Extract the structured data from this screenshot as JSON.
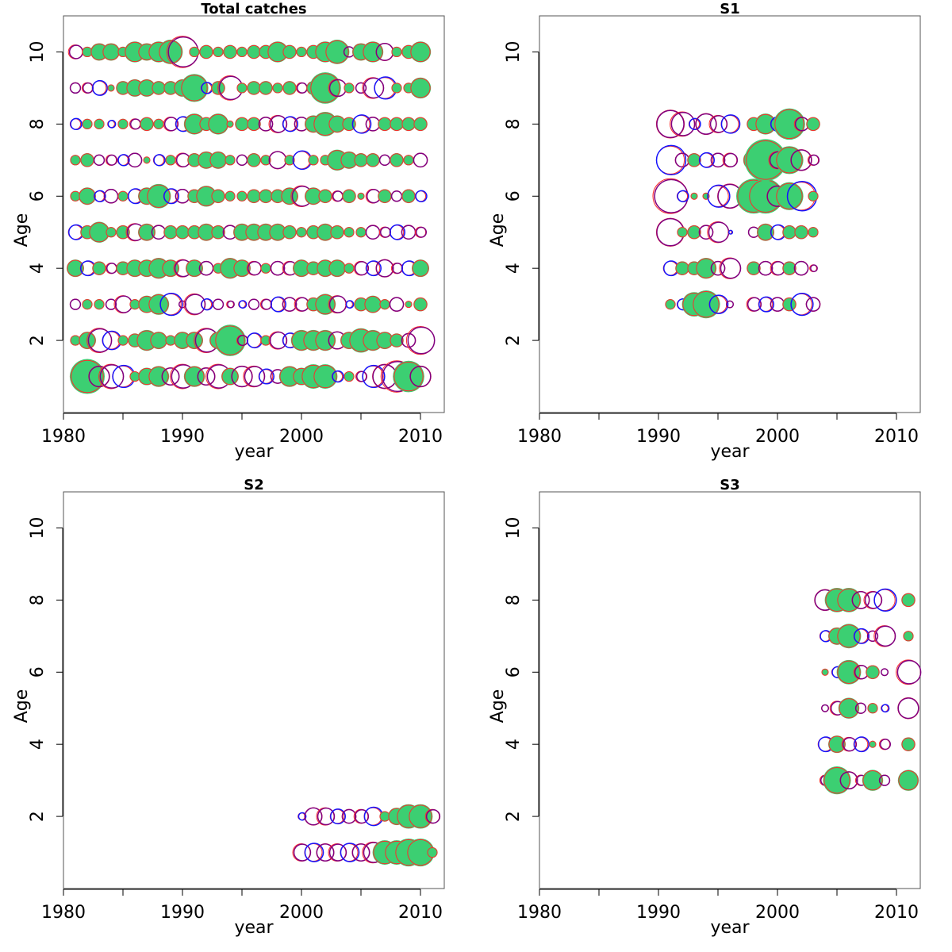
{
  "colors": {
    "filled": "#3ccf72",
    "outline_red": "#ff2a2a",
    "outline_blue": "#1414ff",
    "outline_purple": "#800080"
  },
  "chart_data": [
    {
      "type": "scatter",
      "title": "Total catches",
      "xlabel": "year",
      "ylabel": "Age",
      "xlim": [
        1980,
        2012
      ],
      "ylim": [
        0,
        11
      ],
      "xticks": [
        "1980",
        "1990",
        "2000",
        "2010"
      ],
      "yticks": [
        "2",
        "4",
        "6",
        "8",
        "10"
      ],
      "grid": false,
      "x": [
        1981,
        1982,
        1983,
        1984,
        1985,
        1986,
        1987,
        1988,
        1989,
        1990,
        1991,
        1992,
        1993,
        1994,
        1995,
        1996,
        1997,
        1998,
        1999,
        2000,
        2001,
        2002,
        2003,
        2004,
        2005,
        2006,
        2007,
        2008,
        2009,
        2010
      ],
      "ages": [
        1,
        2,
        3,
        4,
        5,
        6,
        7,
        8,
        9,
        10
      ],
      "sizes": [
        [
          0.3,
          1.0,
          0.6,
          0.7,
          0.6,
          0.3,
          0.5,
          0.6,
          0.5,
          0.7,
          0.6,
          0.5,
          0.7,
          0.5,
          0.6,
          0.6,
          0.4,
          0.4,
          0.6,
          0.5,
          0.7,
          0.7,
          0.3,
          0.3,
          0.3,
          0.6,
          0.7,
          0.9,
          0.9,
          0.6
        ],
        [
          0.3,
          0.5,
          0.7,
          0.5,
          0.3,
          0.4,
          0.6,
          0.5,
          0.3,
          0.5,
          0.5,
          0.7,
          0.5,
          0.9,
          0.3,
          0.4,
          0.3,
          0.5,
          0.4,
          0.6,
          0.6,
          0.6,
          0.5,
          0.5,
          0.7,
          0.6,
          0.5,
          0.4,
          0.4,
          0.8
        ],
        [
          0.3,
          0.3,
          0.3,
          0.3,
          0.5,
          0.3,
          0.5,
          0.6,
          0.6,
          0.2,
          0.6,
          0.3,
          0.3,
          0.2,
          0.2,
          0.3,
          0.3,
          0.4,
          0.4,
          0.4,
          0.4,
          0.6,
          0.5,
          0.2,
          0.4,
          0.5,
          0.3,
          0.4,
          0.2,
          0.4
        ],
        [
          0.5,
          0.4,
          0.4,
          0.3,
          0.4,
          0.5,
          0.5,
          0.6,
          0.5,
          0.5,
          0.5,
          0.4,
          0.3,
          0.6,
          0.5,
          0.4,
          0.3,
          0.4,
          0.4,
          0.5,
          0.4,
          0.5,
          0.5,
          0.3,
          0.4,
          0.4,
          0.5,
          0.3,
          0.4,
          0.5
        ],
        [
          0.4,
          0.4,
          0.6,
          0.3,
          0.4,
          0.5,
          0.5,
          0.4,
          0.4,
          0.4,
          0.4,
          0.5,
          0.4,
          0.4,
          0.5,
          0.5,
          0.5,
          0.5,
          0.4,
          0.3,
          0.4,
          0.5,
          0.4,
          0.3,
          0.3,
          0.4,
          0.3,
          0.4,
          0.4,
          0.3
        ],
        [
          0.3,
          0.5,
          0.3,
          0.4,
          0.3,
          0.4,
          0.5,
          0.7,
          0.4,
          0.4,
          0.4,
          0.6,
          0.4,
          0.3,
          0.3,
          0.4,
          0.4,
          0.4,
          0.5,
          0.6,
          0.5,
          0.4,
          0.3,
          0.4,
          0.2,
          0.4,
          0.4,
          0.3,
          0.4,
          0.3
        ],
        [
          0.3,
          0.4,
          0.3,
          0.3,
          0.3,
          0.4,
          0.2,
          0.3,
          0.3,
          0.4,
          0.4,
          0.5,
          0.5,
          0.3,
          0.3,
          0.4,
          0.3,
          0.5,
          0.3,
          0.5,
          0.3,
          0.3,
          0.6,
          0.5,
          0.4,
          0.4,
          0.3,
          0.4,
          0.3,
          0.4
        ],
        [
          0.3,
          0.3,
          0.3,
          0.2,
          0.3,
          0.3,
          0.4,
          0.3,
          0.4,
          0.4,
          0.6,
          0.4,
          0.6,
          0.2,
          0.4,
          0.4,
          0.4,
          0.5,
          0.4,
          0.4,
          0.5,
          0.7,
          0.5,
          0.4,
          0.5,
          0.4,
          0.4,
          0.4,
          0.4,
          0.4
        ],
        [
          0.3,
          0.3,
          0.4,
          0.2,
          0.4,
          0.5,
          0.5,
          0.4,
          0.4,
          0.5,
          0.8,
          0.3,
          0.4,
          0.7,
          0.3,
          0.4,
          0.4,
          0.3,
          0.4,
          0.3,
          0.4,
          0.9,
          0.5,
          0.3,
          0.3,
          0.6,
          0.6,
          0.3,
          0.3,
          0.6
        ],
        [
          0.4,
          0.3,
          0.5,
          0.5,
          0.3,
          0.6,
          0.5,
          0.6,
          0.7,
          0.9,
          0.3,
          0.4,
          0.3,
          0.4,
          0.3,
          0.4,
          0.4,
          0.6,
          0.4,
          0.3,
          0.4,
          0.6,
          0.7,
          0.3,
          0.5,
          0.6,
          0.5,
          0.3,
          0.4,
          0.6
        ]
      ],
      "filled": [
        [
          0,
          1,
          0,
          0,
          0,
          1,
          1,
          1,
          0,
          0,
          1,
          0,
          0,
          1,
          0,
          0,
          0,
          0,
          1,
          1,
          1,
          1,
          0,
          1,
          0,
          0,
          0,
          0,
          1,
          0
        ],
        [
          1,
          1,
          0,
          0,
          1,
          1,
          1,
          1,
          1,
          1,
          1,
          0,
          1,
          1,
          0,
          0,
          1,
          0,
          0,
          1,
          1,
          1,
          0,
          1,
          1,
          1,
          1,
          1,
          0,
          0
        ],
        [
          0,
          1,
          1,
          0,
          0,
          1,
          1,
          1,
          0,
          0,
          0,
          0,
          0,
          0,
          0,
          0,
          0,
          0,
          0,
          0,
          1,
          1,
          0,
          0,
          1,
          1,
          1,
          0,
          1,
          1
        ],
        [
          1,
          0,
          1,
          0,
          1,
          1,
          1,
          1,
          1,
          0,
          1,
          0,
          1,
          1,
          1,
          0,
          1,
          0,
          0,
          1,
          1,
          1,
          1,
          1,
          0,
          0,
          0,
          0,
          0,
          1
        ],
        [
          0,
          1,
          1,
          1,
          1,
          0,
          1,
          0,
          1,
          1,
          1,
          1,
          1,
          0,
          1,
          1,
          1,
          1,
          1,
          1,
          1,
          1,
          1,
          1,
          1,
          0,
          0,
          0,
          0,
          0
        ],
        [
          1,
          1,
          0,
          0,
          1,
          0,
          1,
          1,
          0,
          0,
          1,
          1,
          1,
          1,
          1,
          1,
          1,
          1,
          1,
          0,
          1,
          1,
          0,
          1,
          1,
          0,
          1,
          0,
          1,
          0
        ],
        [
          1,
          1,
          0,
          0,
          0,
          0,
          1,
          0,
          1,
          0,
          1,
          1,
          1,
          1,
          0,
          1,
          1,
          0,
          1,
          0,
          1,
          1,
          1,
          1,
          1,
          1,
          0,
          1,
          1,
          0
        ],
        [
          0,
          1,
          1,
          0,
          1,
          0,
          1,
          1,
          0,
          0,
          1,
          1,
          1,
          1,
          1,
          1,
          0,
          0,
          0,
          0,
          1,
          1,
          1,
          1,
          0,
          0,
          1,
          1,
          1,
          1
        ],
        [
          0,
          0,
          0,
          1,
          1,
          1,
          1,
          1,
          1,
          1,
          1,
          0,
          1,
          0,
          1,
          1,
          1,
          1,
          1,
          0,
          1,
          1,
          0,
          1,
          0,
          0,
          0,
          1,
          1,
          1
        ],
        [
          0,
          1,
          1,
          1,
          1,
          1,
          1,
          1,
          1,
          0,
          1,
          1,
          1,
          1,
          1,
          1,
          1,
          1,
          1,
          1,
          1,
          1,
          1,
          0,
          1,
          1,
          0,
          1,
          1,
          1
        ]
      ]
    },
    {
      "type": "scatter",
      "title": "S1",
      "xlabel": "year",
      "ylabel": "Age",
      "xlim": [
        1980,
        2012
      ],
      "ylim": [
        0,
        11
      ],
      "xticks": [
        "1980",
        "1990",
        "2000",
        "2010"
      ],
      "yticks": [
        "2",
        "4",
        "6",
        "8",
        "10"
      ],
      "grid": false,
      "x": [
        1991,
        1992,
        1993,
        1994,
        1995,
        1996,
        1998,
        1999,
        2000,
        2001,
        2002,
        2003
      ],
      "ages": [
        3,
        4,
        5,
        6,
        7,
        8
      ],
      "sizes": [
        [
          0.3,
          0.3,
          0.7,
          0.8,
          0.5,
          0.2,
          0.4,
          0.4,
          0.4,
          0.4,
          0.6,
          0.4
        ],
        [
          0.4,
          0.4,
          0.4,
          0.6,
          0.4,
          0.6,
          0.4,
          0.4,
          0.4,
          0.4,
          0.4,
          0.2
        ],
        [
          0.8,
          0.3,
          0.4,
          0.4,
          0.6,
          0.1,
          0.3,
          0.5,
          0.4,
          0.4,
          0.4,
          0.3
        ],
        [
          1.0,
          0.3,
          0.2,
          0.2,
          0.6,
          0.7,
          1.0,
          1.0,
          0.6,
          0.8,
          0.8,
          0.3
        ],
        [
          0.8,
          0.4,
          0.4,
          0.4,
          0.4,
          0.4,
          0.6,
          1.2,
          0.5,
          0.8,
          0.6,
          0.3
        ],
        [
          0.8,
          0.7,
          0.3,
          0.6,
          0.5,
          0.5,
          0.4,
          0.6,
          0.4,
          0.9,
          0.4,
          0.4
        ]
      ],
      "filled": [
        [
          1,
          0,
          1,
          1,
          0,
          0,
          0,
          0,
          0,
          1,
          0,
          0
        ],
        [
          0,
          1,
          1,
          1,
          0,
          0,
          1,
          0,
          0,
          1,
          0,
          0
        ],
        [
          0,
          1,
          1,
          0,
          0,
          0,
          0,
          1,
          0,
          1,
          1,
          1
        ],
        [
          0,
          0,
          1,
          1,
          0,
          0,
          1,
          1,
          0,
          1,
          0,
          1
        ],
        [
          0,
          0,
          1,
          0,
          0,
          0,
          1,
          1,
          0,
          1,
          0,
          0
        ],
        [
          0,
          0,
          0,
          0,
          0,
          0,
          1,
          1,
          0,
          1,
          0,
          1
        ]
      ]
    },
    {
      "type": "scatter",
      "title": "S2",
      "xlabel": "year",
      "ylabel": "Age",
      "xlim": [
        1980,
        2012
      ],
      "ylim": [
        0,
        11
      ],
      "xticks": [
        "1980",
        "1990",
        "2000",
        "2010"
      ],
      "yticks": [
        "2",
        "4",
        "6",
        "8",
        "10"
      ],
      "grid": false,
      "x": [
        2000,
        2001,
        2002,
        2003,
        2004,
        2005,
        2006,
        2007,
        2008,
        2009,
        2010,
        2011
      ],
      "ages": [
        1,
        2
      ],
      "sizes": [
        [
          0.5,
          0.5,
          0.5,
          0.5,
          0.5,
          0.5,
          0.6,
          0.7,
          0.7,
          0.8,
          0.8,
          0.3
        ],
        [
          0.2,
          0.5,
          0.5,
          0.4,
          0.4,
          0.4,
          0.5,
          0.3,
          0.5,
          0.7,
          0.7,
          0.4
        ]
      ],
      "filled": [
        [
          0,
          0,
          0,
          0,
          0,
          0,
          0,
          1,
          1,
          1,
          1,
          1
        ],
        [
          0,
          0,
          0,
          0,
          0,
          0,
          0,
          1,
          1,
          1,
          1,
          0
        ]
      ]
    },
    {
      "type": "scatter",
      "title": "S3",
      "xlabel": "year",
      "ylabel": "Age",
      "xlim": [
        1980,
        2012
      ],
      "ylim": [
        0,
        11
      ],
      "xticks": [
        "1980",
        "1990",
        "2000",
        "2010"
      ],
      "yticks": [
        "2",
        "4",
        "6",
        "8",
        "10"
      ],
      "grid": false,
      "x": [
        2004,
        2005,
        2006,
        2007,
        2008,
        2009,
        2011
      ],
      "ages": [
        3,
        4,
        5,
        6,
        7,
        8
      ],
      "sizes": [
        [
          0.3,
          0.8,
          0.5,
          0.3,
          0.6,
          0.3,
          0.6
        ],
        [
          0.4,
          0.5,
          0.4,
          0.4,
          0.2,
          0.3,
          0.4
        ],
        [
          0.2,
          0.4,
          0.6,
          0.3,
          0.3,
          0.2,
          0.6
        ],
        [
          0.2,
          0.3,
          0.7,
          0.4,
          0.4,
          0.2,
          0.7
        ],
        [
          0.3,
          0.5,
          0.7,
          0.4,
          0.3,
          0.6,
          0.3
        ],
        [
          0.6,
          0.7,
          0.7,
          0.5,
          0.5,
          0.6,
          0.4
        ]
      ],
      "filled": [
        [
          0,
          1,
          0,
          0,
          1,
          0,
          1
        ],
        [
          0,
          1,
          0,
          0,
          1,
          0,
          1
        ],
        [
          0,
          0,
          1,
          0,
          1,
          0,
          0
        ],
        [
          1,
          0,
          1,
          0,
          1,
          0,
          0
        ],
        [
          0,
          1,
          1,
          0,
          0,
          0,
          1
        ],
        [
          0,
          1,
          1,
          0,
          0,
          0,
          1
        ]
      ]
    }
  ]
}
